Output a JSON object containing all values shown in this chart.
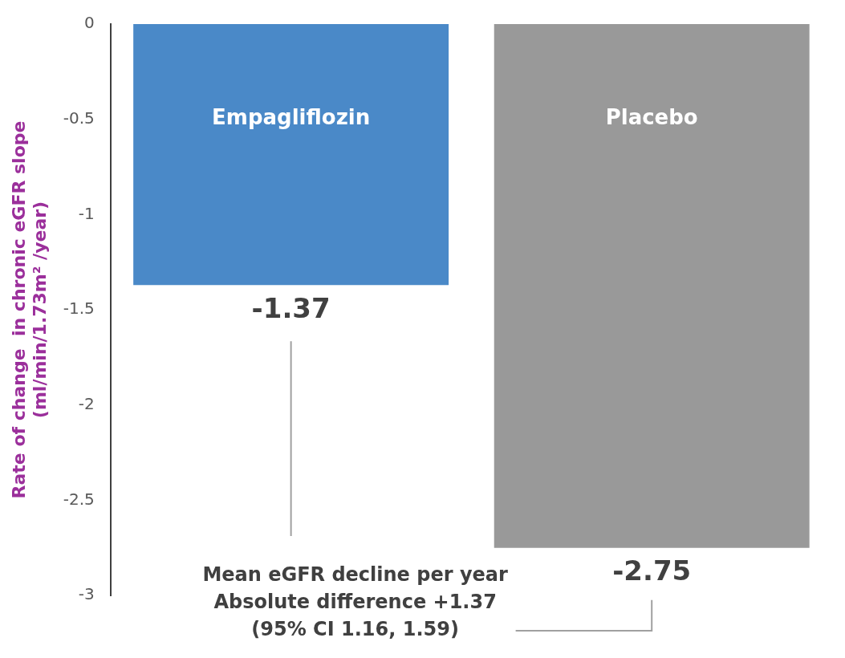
{
  "chart_data": {
    "type": "bar",
    "categories": [
      "Empagliflozin",
      "Placebo"
    ],
    "values": [
      -1.37,
      -2.75
    ],
    "colors": [
      "#4a89c8",
      "#999999"
    ],
    "ylabel": "Rate of change  in chronic eGFR slope\n(ml/min/1.73m² /year)",
    "ylim": [
      -3,
      0
    ],
    "yticks": [
      0,
      -0.5,
      -1,
      -1.5,
      -2,
      -2.5,
      -3
    ],
    "data_labels": true,
    "grid": false,
    "legend": false,
    "annotations": [
      "Mean eGFR decline per year",
      "Absolute difference +1.37",
      "(95% CI 1.16, 1.59)"
    ]
  }
}
